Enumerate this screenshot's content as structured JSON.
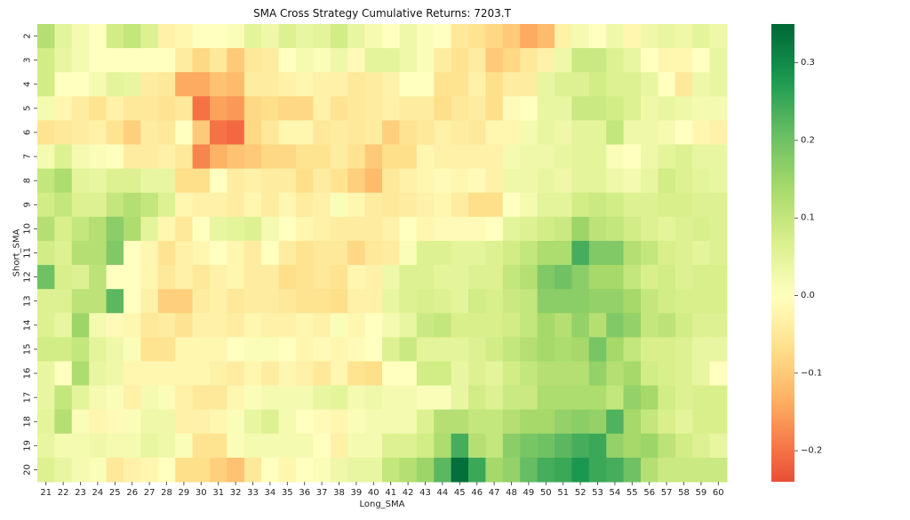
{
  "chart_data": {
    "type": "heatmap",
    "title": "SMA Cross Strategy Cumulative Returns: 7203.T",
    "xlabel": "Long_SMA",
    "ylabel": "Short_SMA",
    "x": [
      "21",
      "22",
      "23",
      "24",
      "25",
      "26",
      "27",
      "28",
      "29",
      "30",
      "31",
      "32",
      "33",
      "34",
      "35",
      "36",
      "37",
      "38",
      "39",
      "40",
      "41",
      "42",
      "43",
      "44",
      "45",
      "46",
      "47",
      "48",
      "49",
      "50",
      "51",
      "52",
      "53",
      "54",
      "55",
      "56",
      "57",
      "58",
      "59",
      "60"
    ],
    "y": [
      "2",
      "3",
      "4",
      "5",
      "6",
      "7",
      "8",
      "9",
      "10",
      "11",
      "12",
      "13",
      "14",
      "15",
      "16",
      "17",
      "18",
      "19",
      "20"
    ],
    "values": [
      [
        0.12,
        0.05,
        0.02,
        0.0,
        0.08,
        0.1,
        0.06,
        -0.03,
        -0.02,
        0.0,
        0.0,
        0.01,
        0.05,
        0.03,
        0.06,
        0.04,
        0.05,
        0.08,
        0.04,
        0.02,
        0.0,
        0.03,
        0.01,
        0.0,
        -0.05,
        -0.06,
        -0.08,
        -0.1,
        -0.14,
        -0.12,
        -0.03,
        0.02,
        0.0,
        0.03,
        -0.02,
        0.03,
        0.04,
        0.03,
        0.05,
        0.03
      ],
      [
        0.08,
        0.04,
        0.02,
        0.0,
        0.0,
        0.0,
        0.0,
        0.0,
        -0.04,
        -0.08,
        -0.05,
        -0.1,
        -0.05,
        -0.04,
        0.0,
        0.02,
        0.01,
        0.03,
        -0.01,
        0.05,
        0.05,
        0.03,
        0.01,
        -0.04,
        -0.06,
        -0.04,
        -0.1,
        -0.08,
        -0.05,
        -0.03,
        0.03,
        0.09,
        0.09,
        0.06,
        0.04,
        0.0,
        -0.02,
        -0.02,
        0.0,
        0.04
      ],
      [
        0.08,
        0.0,
        0.0,
        0.02,
        0.05,
        0.04,
        -0.04,
        -0.05,
        -0.14,
        -0.14,
        -0.11,
        -0.12,
        -0.04,
        -0.04,
        -0.03,
        -0.02,
        -0.03,
        -0.03,
        -0.05,
        -0.04,
        -0.03,
        0.0,
        0.0,
        -0.06,
        -0.06,
        -0.03,
        -0.07,
        -0.04,
        -0.04,
        0.04,
        0.06,
        0.06,
        0.08,
        0.06,
        0.06,
        0.04,
        0.0,
        -0.05,
        0.03,
        0.04
      ],
      [
        0.02,
        -0.02,
        -0.04,
        -0.06,
        -0.03,
        -0.05,
        -0.05,
        -0.06,
        -0.05,
        -0.2,
        -0.15,
        -0.16,
        -0.08,
        -0.07,
        -0.08,
        -0.08,
        -0.03,
        -0.06,
        -0.05,
        -0.04,
        -0.03,
        -0.04,
        -0.04,
        -0.07,
        -0.05,
        -0.04,
        -0.07,
        -0.01,
        0.0,
        0.04,
        0.04,
        0.09,
        0.09,
        0.08,
        0.06,
        0.03,
        0.04,
        0.03,
        0.02,
        0.02
      ],
      [
        -0.06,
        -0.05,
        -0.04,
        -0.03,
        -0.06,
        -0.09,
        -0.04,
        -0.05,
        0.0,
        -0.1,
        -0.2,
        -0.21,
        -0.08,
        -0.05,
        -0.02,
        -0.02,
        -0.05,
        -0.04,
        -0.05,
        -0.04,
        -0.09,
        -0.06,
        -0.05,
        -0.03,
        -0.04,
        -0.05,
        -0.02,
        -0.02,
        0.02,
        0.04,
        0.03,
        0.05,
        0.05,
        0.1,
        0.03,
        0.03,
        0.02,
        0.0,
        -0.02,
        -0.03
      ],
      [
        0.02,
        0.06,
        0.02,
        0.01,
        0.0,
        -0.04,
        -0.04,
        -0.03,
        -0.05,
        -0.18,
        -0.13,
        -0.11,
        -0.1,
        -0.08,
        -0.08,
        -0.06,
        -0.06,
        -0.04,
        -0.06,
        -0.1,
        -0.07,
        -0.07,
        -0.02,
        -0.03,
        -0.03,
        -0.03,
        -0.03,
        0.02,
        0.03,
        0.03,
        0.04,
        0.05,
        0.05,
        0.01,
        0.0,
        0.03,
        0.05,
        0.06,
        0.04,
        0.04
      ],
      [
        0.1,
        0.13,
        0.05,
        0.04,
        0.06,
        0.06,
        0.04,
        0.04,
        -0.07,
        -0.07,
        0.0,
        -0.04,
        -0.03,
        -0.04,
        -0.04,
        -0.07,
        -0.04,
        -0.06,
        -0.09,
        -0.12,
        -0.05,
        -0.03,
        -0.02,
        -0.01,
        -0.02,
        -0.01,
        -0.03,
        0.03,
        0.03,
        0.04,
        0.03,
        0.05,
        0.05,
        0.03,
        0.02,
        0.04,
        0.08,
        0.06,
        0.05,
        0.04
      ],
      [
        0.08,
        0.1,
        0.06,
        0.06,
        0.1,
        0.12,
        0.1,
        0.06,
        -0.02,
        -0.03,
        -0.03,
        -0.04,
        -0.02,
        -0.04,
        -0.02,
        -0.04,
        -0.03,
        0.01,
        -0.02,
        -0.04,
        -0.05,
        -0.04,
        -0.03,
        -0.02,
        -0.04,
        -0.07,
        -0.07,
        0.0,
        0.02,
        0.05,
        0.05,
        0.08,
        0.09,
        0.08,
        0.06,
        0.06,
        0.07,
        0.07,
        0.06,
        0.06
      ],
      [
        0.12,
        0.07,
        0.1,
        0.12,
        0.17,
        0.13,
        0.05,
        -0.02,
        -0.05,
        0.0,
        0.04,
        0.05,
        0.06,
        0.02,
        0.0,
        -0.02,
        -0.03,
        -0.04,
        -0.04,
        -0.04,
        -0.03,
        0.0,
        -0.02,
        -0.01,
        -0.01,
        -0.01,
        0.0,
        0.05,
        0.06,
        0.08,
        0.09,
        0.15,
        0.11,
        0.1,
        0.08,
        0.06,
        0.05,
        0.06,
        0.07,
        0.06
      ],
      [
        0.08,
        0.06,
        0.12,
        0.12,
        0.18,
        0.0,
        -0.02,
        -0.06,
        -0.03,
        -0.02,
        0.0,
        -0.02,
        -0.04,
        0.0,
        -0.04,
        -0.06,
        -0.05,
        -0.05,
        -0.08,
        -0.05,
        -0.04,
        0.01,
        0.06,
        0.06,
        0.05,
        0.05,
        0.06,
        0.08,
        0.1,
        0.13,
        0.13,
        0.24,
        0.18,
        0.18,
        0.12,
        0.1,
        0.07,
        0.06,
        0.05,
        0.06
      ],
      [
        0.2,
        0.07,
        0.06,
        0.11,
        0.0,
        0.0,
        -0.02,
        -0.05,
        -0.03,
        -0.05,
        -0.03,
        -0.02,
        -0.04,
        -0.04,
        -0.07,
        -0.06,
        -0.05,
        -0.06,
        -0.02,
        -0.03,
        0.03,
        0.06,
        0.06,
        0.05,
        0.05,
        0.06,
        0.06,
        0.1,
        0.12,
        0.18,
        0.2,
        0.17,
        0.14,
        0.14,
        0.1,
        0.07,
        0.08,
        0.06,
        0.07,
        0.07
      ],
      [
        0.06,
        0.06,
        0.11,
        0.11,
        0.22,
        0.0,
        -0.03,
        -0.09,
        -0.09,
        -0.04,
        -0.03,
        -0.05,
        -0.04,
        -0.04,
        -0.05,
        -0.06,
        -0.06,
        -0.07,
        -0.03,
        -0.03,
        0.04,
        0.06,
        0.07,
        0.06,
        0.05,
        0.08,
        0.07,
        0.09,
        0.1,
        0.17,
        0.17,
        0.17,
        0.16,
        0.16,
        0.14,
        0.1,
        0.08,
        0.07,
        0.07,
        0.07
      ],
      [
        0.06,
        0.04,
        0.15,
        0.02,
        -0.01,
        -0.02,
        -0.05,
        -0.04,
        -0.06,
        -0.03,
        -0.03,
        -0.04,
        -0.02,
        -0.03,
        -0.03,
        -0.02,
        -0.03,
        0.01,
        -0.02,
        0.0,
        0.02,
        0.04,
        0.09,
        0.1,
        0.07,
        0.07,
        0.07,
        0.08,
        0.1,
        0.14,
        0.12,
        0.16,
        0.12,
        0.18,
        0.16,
        0.1,
        0.11,
        0.08,
        0.06,
        0.06
      ],
      [
        0.08,
        0.08,
        0.1,
        0.05,
        0.03,
        0.01,
        -0.06,
        -0.06,
        -0.02,
        -0.02,
        -0.02,
        0.0,
        0.01,
        0.01,
        0.0,
        -0.02,
        -0.01,
        -0.02,
        -0.01,
        0.0,
        0.06,
        0.09,
        0.05,
        0.05,
        0.05,
        0.06,
        0.08,
        0.1,
        0.12,
        0.14,
        0.13,
        0.14,
        0.19,
        0.14,
        0.1,
        0.07,
        0.07,
        0.06,
        0.04,
        0.04
      ],
      [
        0.04,
        0.0,
        0.13,
        0.04,
        0.03,
        -0.02,
        -0.02,
        -0.02,
        -0.02,
        -0.02,
        -0.03,
        -0.04,
        -0.02,
        -0.04,
        -0.02,
        -0.03,
        -0.05,
        -0.02,
        -0.06,
        -0.07,
        0.0,
        0.0,
        0.08,
        0.08,
        0.04,
        0.06,
        0.05,
        0.08,
        0.1,
        0.12,
        0.12,
        0.12,
        0.16,
        0.12,
        0.14,
        0.08,
        0.07,
        0.06,
        0.04,
        0.0
      ],
      [
        0.04,
        0.1,
        0.05,
        0.02,
        0.01,
        -0.03,
        0.02,
        0.01,
        -0.03,
        -0.05,
        -0.05,
        -0.02,
        0.01,
        0.02,
        0.02,
        0.02,
        0.04,
        0.05,
        0.02,
        0.03,
        0.02,
        0.02,
        0.01,
        0.01,
        0.04,
        0.08,
        0.06,
        0.09,
        0.09,
        0.13,
        0.13,
        0.13,
        0.13,
        0.1,
        0.16,
        0.14,
        0.08,
        0.06,
        0.07,
        0.07
      ],
      [
        0.05,
        0.12,
        0.01,
        -0.02,
        -0.01,
        0.01,
        0.03,
        0.03,
        -0.03,
        -0.03,
        -0.02,
        0.01,
        0.04,
        0.06,
        0.02,
        0.0,
        -0.01,
        -0.02,
        0.01,
        0.02,
        0.02,
        0.02,
        0.06,
        0.12,
        0.12,
        0.1,
        0.1,
        0.12,
        0.14,
        0.14,
        0.16,
        0.17,
        0.16,
        0.23,
        0.14,
        0.1,
        0.07,
        0.05,
        0.07,
        0.07
      ],
      [
        0.04,
        0.02,
        0.02,
        0.03,
        0.02,
        0.02,
        0.04,
        0.03,
        0.01,
        -0.06,
        -0.06,
        0.01,
        0.02,
        0.02,
        0.02,
        0.02,
        0.0,
        -0.03,
        0.02,
        0.02,
        0.06,
        0.06,
        0.08,
        0.13,
        0.24,
        0.12,
        0.1,
        0.17,
        0.19,
        0.2,
        0.22,
        0.24,
        0.25,
        0.16,
        0.14,
        0.15,
        0.11,
        0.08,
        0.06,
        0.04
      ],
      [
        0.06,
        0.04,
        0.02,
        0.01,
        -0.05,
        -0.03,
        -0.02,
        0.0,
        -0.07,
        -0.07,
        -0.09,
        -0.11,
        -0.05,
        0.0,
        -0.02,
        0.0,
        0.01,
        0.03,
        0.04,
        0.04,
        0.1,
        0.12,
        0.15,
        0.22,
        0.34,
        0.25,
        0.14,
        0.16,
        0.21,
        0.24,
        0.25,
        0.28,
        0.25,
        0.24,
        0.2,
        0.12,
        0.09,
        0.09,
        0.09,
        0.09
      ]
    ],
    "vmin": -0.24,
    "vmax": 0.35,
    "colormap": "RdYlGn",
    "colorbar": {
      "ticks": [
        -0.2,
        -0.1,
        0.0,
        0.1,
        0.2,
        0.3
      ],
      "labels": [
        "−0.2",
        "−0.1",
        "0.0",
        "0.1",
        "0.2",
        "0.3"
      ]
    },
    "grid": false,
    "legend": "colorbar-right"
  }
}
